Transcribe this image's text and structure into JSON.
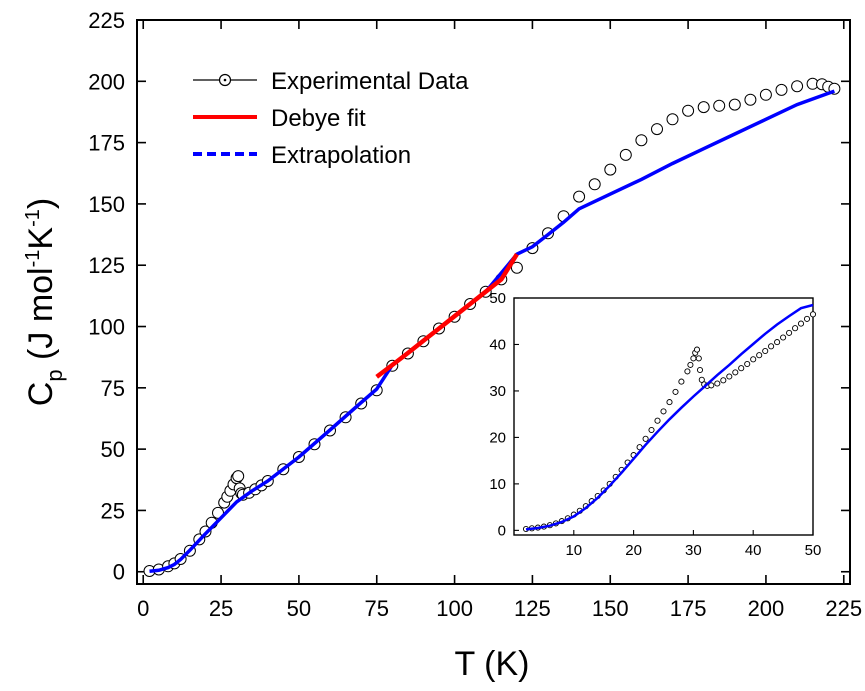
{
  "chart_data": {
    "type": "scatter",
    "xlabel": "T (K)",
    "ylabel": {
      "base": "C",
      "sub": "p",
      "units_prefix": " (J mol",
      "exp1": "-1",
      "mid": "K",
      "exp2": "-1",
      "units_suffix": ")"
    },
    "xlim": [
      -2,
      227
    ],
    "ylim": [
      -5,
      225
    ],
    "xticks": [
      0,
      25,
      50,
      75,
      100,
      125,
      150,
      175,
      200,
      225
    ],
    "yticks": [
      0,
      25,
      50,
      75,
      100,
      125,
      150,
      175,
      200,
      225
    ],
    "legend": {
      "placement": "top-left",
      "entries": [
        {
          "label": "Experimental Data",
          "style": "line-open-circle",
          "color": "#000000"
        },
        {
          "label": "Debye fit",
          "style": "solid",
          "color": "#ff0000"
        },
        {
          "label": "Extrapolation",
          "style": "dashed",
          "color": "#0000ff"
        }
      ]
    },
    "series": [
      {
        "name": "Experimental Data",
        "marker": "open-circle",
        "points": [
          [
            2,
            0.3
          ],
          [
            5,
            0.9
          ],
          [
            8,
            2.2
          ],
          [
            10,
            3.4
          ],
          [
            12,
            5.2
          ],
          [
            15,
            8.6
          ],
          [
            18,
            13.2
          ],
          [
            20,
            16.4
          ],
          [
            22,
            20.0
          ],
          [
            24,
            24.0
          ],
          [
            26,
            28.2
          ],
          [
            27,
            30.6
          ],
          [
            28,
            33.0
          ],
          [
            29,
            35.6
          ],
          [
            30,
            38.2
          ],
          [
            30.5,
            39.0
          ],
          [
            31,
            34.0
          ],
          [
            31.5,
            32.0
          ],
          [
            32,
            31.4
          ],
          [
            34,
            32.2
          ],
          [
            36,
            33.6
          ],
          [
            38,
            35.2
          ],
          [
            40,
            37.0
          ],
          [
            45,
            41.8
          ],
          [
            50,
            46.8
          ],
          [
            55,
            52.0
          ],
          [
            60,
            57.6
          ],
          [
            65,
            63.0
          ],
          [
            70,
            68.6
          ],
          [
            75,
            74.0
          ],
          [
            80,
            84.0
          ],
          [
            85,
            89.0
          ],
          [
            90,
            94.0
          ],
          [
            95,
            99.2
          ],
          [
            100,
            104.0
          ],
          [
            105,
            109.2
          ],
          [
            110,
            114.2
          ],
          [
            115,
            119.2
          ],
          [
            120,
            124.0
          ],
          [
            125,
            132.0
          ],
          [
            130,
            138.0
          ],
          [
            135,
            145.0
          ],
          [
            140,
            153.0
          ],
          [
            145,
            158.0
          ],
          [
            150,
            164.0
          ],
          [
            155,
            170.0
          ],
          [
            160,
            176.0
          ],
          [
            165,
            180.5
          ],
          [
            170,
            184.5
          ],
          [
            175,
            188.0
          ],
          [
            180,
            189.5
          ],
          [
            185,
            190.0
          ],
          [
            190,
            190.5
          ],
          [
            195,
            192.5
          ],
          [
            200,
            194.5
          ],
          [
            205,
            196.5
          ],
          [
            210,
            198.0
          ],
          [
            215,
            199.0
          ],
          [
            218,
            198.8
          ],
          [
            220,
            197.8
          ],
          [
            222,
            197.0
          ]
        ]
      },
      {
        "name": "Debye fit",
        "color": "#ff0000",
        "points": [
          [
            75,
            79.5
          ],
          [
            80,
            84.3
          ],
          [
            85,
            89.2
          ],
          [
            90,
            94.2
          ],
          [
            95,
            99.2
          ],
          [
            100,
            104.2
          ],
          [
            105,
            109.2
          ],
          [
            110,
            114.2
          ],
          [
            115,
            119.2
          ],
          [
            120,
            129.5
          ]
        ]
      },
      {
        "name": "Extrapolation",
        "color": "#0000ff",
        "points": [
          [
            2,
            0.2
          ],
          [
            5,
            0.6
          ],
          [
            8,
            1.7
          ],
          [
            10,
            3.0
          ],
          [
            12,
            5.0
          ],
          [
            15,
            8.8
          ],
          [
            20,
            15.5
          ],
          [
            25,
            22.0
          ],
          [
            30,
            28.5
          ],
          [
            35,
            33.0
          ],
          [
            40,
            37.0
          ],
          [
            50,
            46.8
          ],
          [
            60,
            57.8
          ],
          [
            70,
            69.0
          ],
          [
            75,
            74.5
          ],
          [
            80,
            84.3
          ],
          [
            90,
            94.2
          ],
          [
            100,
            104.2
          ],
          [
            110,
            114.2
          ],
          [
            120,
            129.5
          ],
          [
            125,
            132.5
          ],
          [
            130,
            137.5
          ],
          [
            135,
            142.5
          ],
          [
            140,
            148.0
          ],
          [
            150,
            154.0
          ],
          [
            160,
            160.0
          ],
          [
            170,
            166.5
          ],
          [
            180,
            172.5
          ],
          [
            190,
            178.5
          ],
          [
            200,
            184.5
          ],
          [
            210,
            190.5
          ],
          [
            222,
            196.0
          ]
        ]
      }
    ],
    "inset": {
      "type": "scatter",
      "xlim": [
        0,
        50
      ],
      "ylim": [
        -1,
        50
      ],
      "xticks": [
        10,
        20,
        30,
        40,
        50
      ],
      "yticks": [
        0,
        10,
        20,
        30,
        40,
        50
      ],
      "series": [
        {
          "name": "Experimental Data",
          "marker": "open-circle",
          "points": [
            [
              2,
              0.3
            ],
            [
              3,
              0.45
            ],
            [
              4,
              0.6
            ],
            [
              5,
              0.8
            ],
            [
              6,
              1.1
            ],
            [
              7,
              1.5
            ],
            [
              8,
              2.0
            ],
            [
              9,
              2.6
            ],
            [
              10,
              3.4
            ],
            [
              11,
              4.2
            ],
            [
              12,
              5.2
            ],
            [
              13,
              6.3
            ],
            [
              14,
              7.4
            ],
            [
              15,
              8.6
            ],
            [
              16,
              10.0
            ],
            [
              17,
              11.5
            ],
            [
              18,
              13.0
            ],
            [
              19,
              14.6
            ],
            [
              20,
              16.2
            ],
            [
              21,
              17.9
            ],
            [
              22,
              19.7
            ],
            [
              23,
              21.6
            ],
            [
              24,
              23.6
            ],
            [
              25,
              25.6
            ],
            [
              26,
              27.6
            ],
            [
              27,
              29.8
            ],
            [
              28,
              32.0
            ],
            [
              29,
              34.2
            ],
            [
              29.5,
              35.6
            ],
            [
              30,
              37.0
            ],
            [
              30.3,
              38.2
            ],
            [
              30.6,
              38.9
            ],
            [
              30.9,
              37.0
            ],
            [
              31.1,
              34.5
            ],
            [
              31.4,
              32.4
            ],
            [
              31.8,
              31.4
            ],
            [
              32.3,
              31.1
            ],
            [
              33,
              31.2
            ],
            [
              34,
              31.6
            ],
            [
              35,
              32.3
            ],
            [
              36,
              33.1
            ],
            [
              37,
              34.0
            ],
            [
              38,
              34.9
            ],
            [
              39,
              35.8
            ],
            [
              40,
              36.8
            ],
            [
              41,
              37.7
            ],
            [
              42,
              38.6
            ],
            [
              43,
              39.6
            ],
            [
              44,
              40.5
            ],
            [
              45,
              41.5
            ],
            [
              46,
              42.5
            ],
            [
              47,
              43.5
            ],
            [
              48,
              44.5
            ],
            [
              49,
              45.5
            ],
            [
              50,
              46.5
            ]
          ]
        },
        {
          "name": "Extrapolation",
          "color": "#0000ff",
          "points": [
            [
              2,
              0.2
            ],
            [
              4,
              0.5
            ],
            [
              6,
              1.0
            ],
            [
              8,
              1.8
            ],
            [
              10,
              3.0
            ],
            [
              12,
              4.8
            ],
            [
              14,
              7.0
            ],
            [
              16,
              9.6
            ],
            [
              18,
              12.4
            ],
            [
              20,
              15.4
            ],
            [
              22,
              18.4
            ],
            [
              24,
              21.2
            ],
            [
              26,
              23.9
            ],
            [
              28,
              26.4
            ],
            [
              30,
              28.8
            ],
            [
              32,
              31.1
            ],
            [
              34,
              33.4
            ],
            [
              36,
              35.6
            ],
            [
              38,
              37.9
            ],
            [
              40,
              40.1
            ],
            [
              42,
              42.3
            ],
            [
              44,
              44.3
            ],
            [
              46,
              46.1
            ],
            [
              48,
              47.8
            ],
            [
              50,
              48.5
            ]
          ]
        }
      ]
    }
  }
}
